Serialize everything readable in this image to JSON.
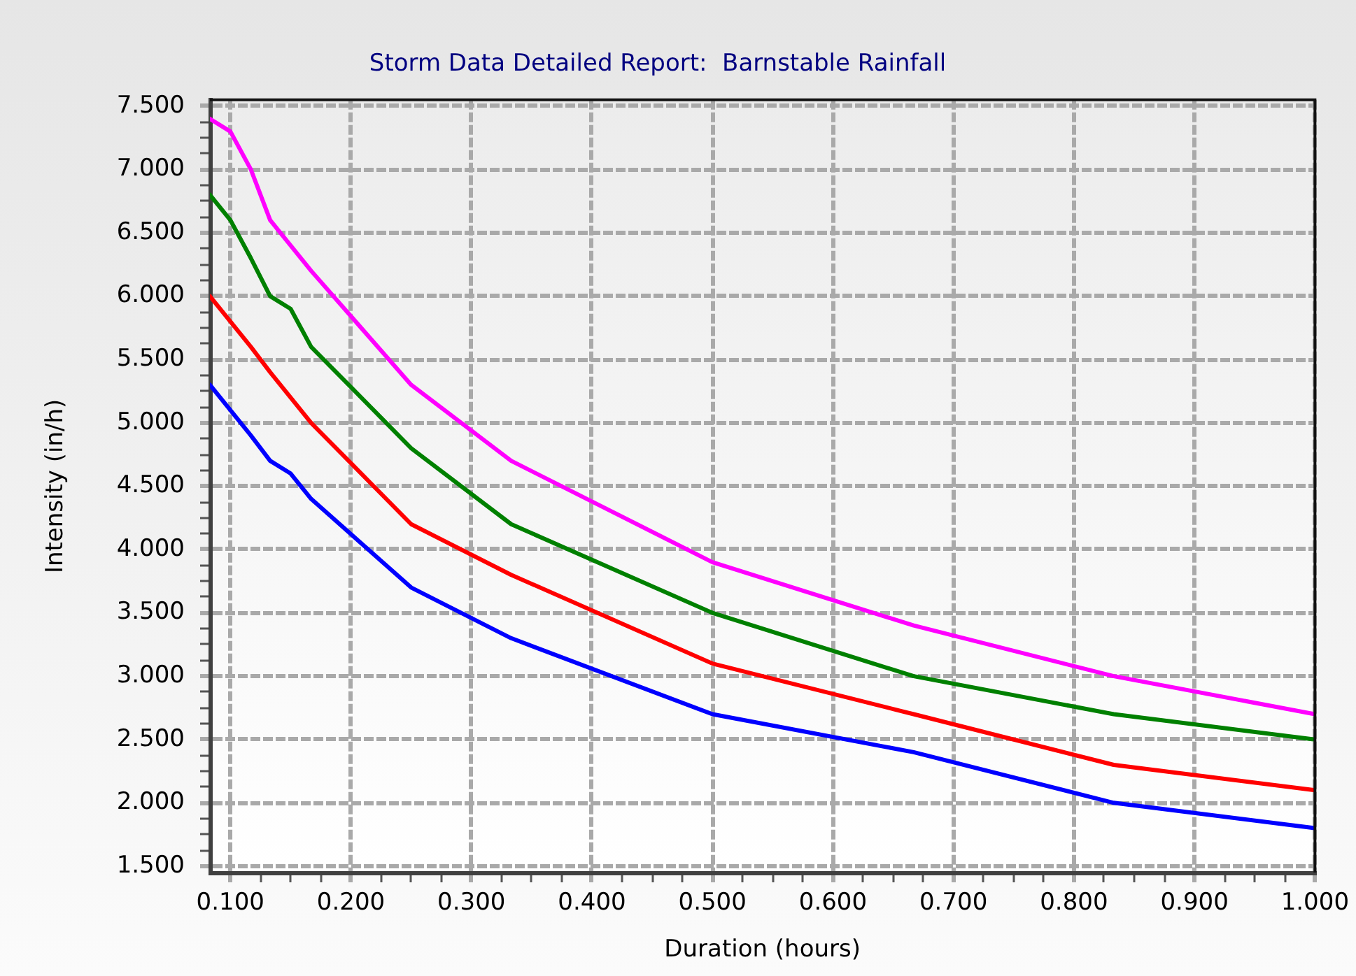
{
  "chart_data": {
    "type": "line",
    "title": "Storm Data Detailed Report:  Barnstable Rainfall",
    "xlabel": "Duration (hours)",
    "ylabel": "Intensity (in/h)",
    "x": [
      0.083,
      0.1,
      0.117,
      0.133,
      0.15,
      0.167,
      0.25,
      0.333,
      0.5,
      0.667,
      0.833,
      1.0
    ],
    "series": [
      {
        "color": "#ff00ff",
        "values": [
          7.4,
          7.3,
          7.0,
          6.6,
          6.4,
          6.2,
          5.3,
          4.7,
          3.9,
          3.4,
          3.0,
          2.7
        ]
      },
      {
        "color": "#008000",
        "values": [
          6.8,
          6.6,
          6.3,
          6.0,
          5.9,
          5.6,
          4.8,
          4.2,
          3.5,
          3.0,
          2.7,
          2.5
        ]
      },
      {
        "color": "#ff0000",
        "values": [
          6.0,
          5.8,
          5.6,
          5.4,
          5.2,
          5.0,
          4.2,
          3.8,
          3.1,
          2.7,
          2.3,
          2.1
        ]
      },
      {
        "color": "#0000ff",
        "values": [
          5.3,
          5.1,
          4.9,
          4.7,
          4.6,
          4.4,
          3.7,
          3.3,
          2.7,
          2.4,
          2.0,
          1.8
        ]
      }
    ],
    "xlim": [
      0.083,
      1.0
    ],
    "xticks": [
      {
        "value": 0.1,
        "label": "0.100"
      },
      {
        "value": 0.125,
        "label": null
      },
      {
        "value": 0.15,
        "label": null
      },
      {
        "value": 0.175,
        "label": null
      },
      {
        "value": 0.2,
        "label": "0.200"
      },
      {
        "value": 0.225,
        "label": null
      },
      {
        "value": 0.25,
        "label": null
      },
      {
        "value": 0.275,
        "label": null
      },
      {
        "value": 0.3,
        "label": "0.300"
      },
      {
        "value": 0.325,
        "label": null
      },
      {
        "value": 0.35,
        "label": null
      },
      {
        "value": 0.375,
        "label": null
      },
      {
        "value": 0.4,
        "label": "0.400"
      },
      {
        "value": 0.425,
        "label": null
      },
      {
        "value": 0.45,
        "label": null
      },
      {
        "value": 0.475,
        "label": null
      },
      {
        "value": 0.5,
        "label": "0.500"
      },
      {
        "value": 0.525,
        "label": null
      },
      {
        "value": 0.55,
        "label": null
      },
      {
        "value": 0.575,
        "label": null
      },
      {
        "value": 0.6,
        "label": "0.600"
      },
      {
        "value": 0.625,
        "label": null
      },
      {
        "value": 0.65,
        "label": null
      },
      {
        "value": 0.675,
        "label": null
      },
      {
        "value": 0.7,
        "label": "0.700"
      },
      {
        "value": 0.725,
        "label": null
      },
      {
        "value": 0.75,
        "label": null
      },
      {
        "value": 0.775,
        "label": null
      },
      {
        "value": 0.8,
        "label": "0.800"
      },
      {
        "value": 0.825,
        "label": null
      },
      {
        "value": 0.85,
        "label": null
      },
      {
        "value": 0.875,
        "label": null
      },
      {
        "value": 0.9,
        "label": "0.900"
      },
      {
        "value": 0.925,
        "label": null
      },
      {
        "value": 0.95,
        "label": null
      },
      {
        "value": 0.975,
        "label": null
      },
      {
        "value": 1.0,
        "label": "1.000"
      }
    ],
    "ylim": [
      1.45,
      7.55
    ],
    "yticks": [
      {
        "value": 1.5,
        "label": "1.500"
      },
      {
        "value": 1.625,
        "label": null
      },
      {
        "value": 1.75,
        "label": null
      },
      {
        "value": 1.875,
        "label": null
      },
      {
        "value": 2.0,
        "label": "2.000"
      },
      {
        "value": 2.125,
        "label": null
      },
      {
        "value": 2.25,
        "label": null
      },
      {
        "value": 2.375,
        "label": null
      },
      {
        "value": 2.5,
        "label": "2.500"
      },
      {
        "value": 2.625,
        "label": null
      },
      {
        "value": 2.75,
        "label": null
      },
      {
        "value": 2.875,
        "label": null
      },
      {
        "value": 3.0,
        "label": "3.000"
      },
      {
        "value": 3.125,
        "label": null
      },
      {
        "value": 3.25,
        "label": null
      },
      {
        "value": 3.375,
        "label": null
      },
      {
        "value": 3.5,
        "label": "3.500"
      },
      {
        "value": 3.625,
        "label": null
      },
      {
        "value": 3.75,
        "label": null
      },
      {
        "value": 3.875,
        "label": null
      },
      {
        "value": 4.0,
        "label": "4.000"
      },
      {
        "value": 4.125,
        "label": null
      },
      {
        "value": 4.25,
        "label": null
      },
      {
        "value": 4.375,
        "label": null
      },
      {
        "value": 4.5,
        "label": "4.500"
      },
      {
        "value": 4.625,
        "label": null
      },
      {
        "value": 4.75,
        "label": null
      },
      {
        "value": 4.875,
        "label": null
      },
      {
        "value": 5.0,
        "label": "5.000"
      },
      {
        "value": 5.125,
        "label": null
      },
      {
        "value": 5.25,
        "label": null
      },
      {
        "value": 5.375,
        "label": null
      },
      {
        "value": 5.5,
        "label": "5.500"
      },
      {
        "value": 5.625,
        "label": null
      },
      {
        "value": 5.75,
        "label": null
      },
      {
        "value": 5.875,
        "label": null
      },
      {
        "value": 6.0,
        "label": "6.000"
      },
      {
        "value": 6.125,
        "label": null
      },
      {
        "value": 6.25,
        "label": null
      },
      {
        "value": 6.375,
        "label": null
      },
      {
        "value": 6.5,
        "label": "6.500"
      },
      {
        "value": 6.625,
        "label": null
      },
      {
        "value": 6.75,
        "label": null
      },
      {
        "value": 6.875,
        "label": null
      },
      {
        "value": 7.0,
        "label": "7.000"
      },
      {
        "value": 7.125,
        "label": null
      },
      {
        "value": 7.25,
        "label": null
      },
      {
        "value": 7.375,
        "label": null
      },
      {
        "value": 7.5,
        "label": "7.500"
      }
    ],
    "grid": true,
    "marker": "none",
    "line_style": "solid"
  }
}
